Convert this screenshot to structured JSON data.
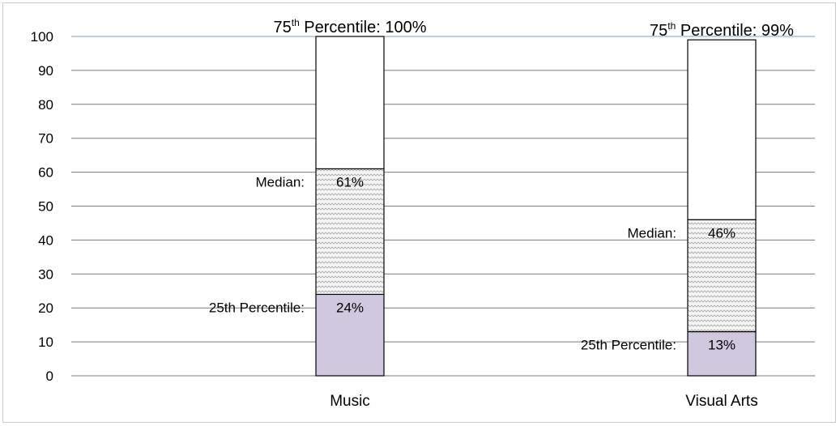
{
  "chart_data": {
    "type": "bar",
    "subtype": "stacked-percentile",
    "categories": [
      "Music",
      "Visual Arts"
    ],
    "series": [
      {
        "values": [
          24,
          13
        ],
        "color": "#cfc8df",
        "pattern": "solid"
      },
      {
        "values": [
          61,
          46
        ],
        "color": "#f2f2f2",
        "pattern": "wavy"
      },
      {
        "values": [
          100,
          99
        ],
        "color": "#ffffff",
        "pattern": "none"
      }
    ],
    "ylim": [
      0,
      100
    ],
    "yticks": [
      "0",
      "10",
      "20",
      "30",
      "40",
      "50",
      "60",
      "70",
      "80",
      "90",
      "100"
    ],
    "grid": true,
    "legend": "none",
    "annotations": [
      {
        "p75": {
          "prefix": "75",
          "sup": "th",
          "suffix": " Percentile: 100%"
        },
        "median": {
          "label": "Median:",
          "value": "61%"
        },
        "p25": {
          "label": "25th Percentile:",
          "value": "24%"
        }
      },
      {
        "p75": {
          "prefix": "75",
          "sup": "th",
          "suffix": " Percentile: 99%"
        },
        "median": {
          "label": "Median:",
          "value": "46%"
        },
        "p25": {
          "label": "25th Percentile:",
          "value": "13%"
        }
      }
    ]
  }
}
